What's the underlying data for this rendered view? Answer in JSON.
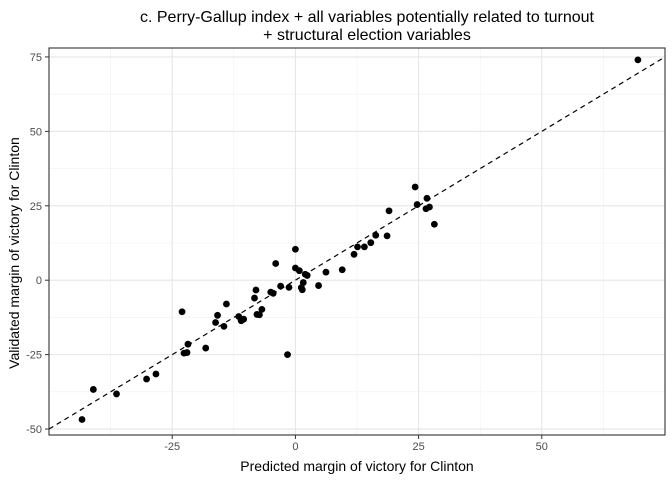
{
  "chart_data": {
    "type": "scatter",
    "title": [
      "c. Perry-Gallup index + all variables potentially related to turnout",
      "+ structural election variables"
    ],
    "xlabel": "Predicted margin of victory for Clinton",
    "ylabel": "Validated margin of victory for Clinton",
    "xlim": [
      -50,
      75
    ],
    "ylim": [
      -52,
      78
    ],
    "x_ticks": [
      -25,
      0,
      25,
      50
    ],
    "y_ticks": [
      -50,
      -25,
      0,
      25,
      50,
      75
    ],
    "grid": true,
    "reference_line": {
      "style": "dashed",
      "slope": 1,
      "intercept": 0
    },
    "points": [
      {
        "x": 69.5,
        "y": 74
      },
      {
        "x": -43.3,
        "y": -46.8
      },
      {
        "x": -41,
        "y": -36.7
      },
      {
        "x": -36.3,
        "y": -38.2
      },
      {
        "x": -30.2,
        "y": -33.2
      },
      {
        "x": -28.3,
        "y": -31.5
      },
      {
        "x": -23,
        "y": -10.6
      },
      {
        "x": -22.6,
        "y": -24.5
      },
      {
        "x": -22,
        "y": -24.3
      },
      {
        "x": -21.8,
        "y": -21.5
      },
      {
        "x": -18.2,
        "y": -22.8
      },
      {
        "x": -16.2,
        "y": -14.2
      },
      {
        "x": -15.8,
        "y": -11.8
      },
      {
        "x": -14.5,
        "y": -15.5
      },
      {
        "x": -14,
        "y": -8
      },
      {
        "x": -11.5,
        "y": -12.2
      },
      {
        "x": -11,
        "y": -13.6
      },
      {
        "x": -10.5,
        "y": -13.1
      },
      {
        "x": -8.3,
        "y": -6
      },
      {
        "x": -8,
        "y": -3.3
      },
      {
        "x": -7.8,
        "y": -11.5
      },
      {
        "x": -7.3,
        "y": -11.6
      },
      {
        "x": -6.8,
        "y": -9.8
      },
      {
        "x": -5,
        "y": -4
      },
      {
        "x": -4.5,
        "y": -4.4
      },
      {
        "x": -4,
        "y": 5.6
      },
      {
        "x": -3,
        "y": -2
      },
      {
        "x": -1.6,
        "y": -25
      },
      {
        "x": -1.3,
        "y": -2.4
      },
      {
        "x": 0,
        "y": 10.4
      },
      {
        "x": 0,
        "y": 4.1
      },
      {
        "x": 0.8,
        "y": 3.2
      },
      {
        "x": 1.2,
        "y": -2.5
      },
      {
        "x": 1.4,
        "y": -3.2
      },
      {
        "x": 1.6,
        "y": -0.8
      },
      {
        "x": 2,
        "y": 2
      },
      {
        "x": 2.4,
        "y": 1.6
      },
      {
        "x": 4.7,
        "y": -1.8
      },
      {
        "x": 6.2,
        "y": 2.7
      },
      {
        "x": 9.5,
        "y": 3.5
      },
      {
        "x": 11.9,
        "y": 8.7
      },
      {
        "x": 12.6,
        "y": 11.2
      },
      {
        "x": 14,
        "y": 11.2
      },
      {
        "x": 15.3,
        "y": 12.6
      },
      {
        "x": 16.3,
        "y": 15.1
      },
      {
        "x": 18.6,
        "y": 14.9
      },
      {
        "x": 19,
        "y": 23.3
      },
      {
        "x": 24.3,
        "y": 31.3
      },
      {
        "x": 24.7,
        "y": 25.4
      },
      {
        "x": 26.5,
        "y": 24
      },
      {
        "x": 26.7,
        "y": 27.5
      },
      {
        "x": 27.2,
        "y": 24.6
      },
      {
        "x": 28.2,
        "y": 18.8
      }
    ]
  }
}
